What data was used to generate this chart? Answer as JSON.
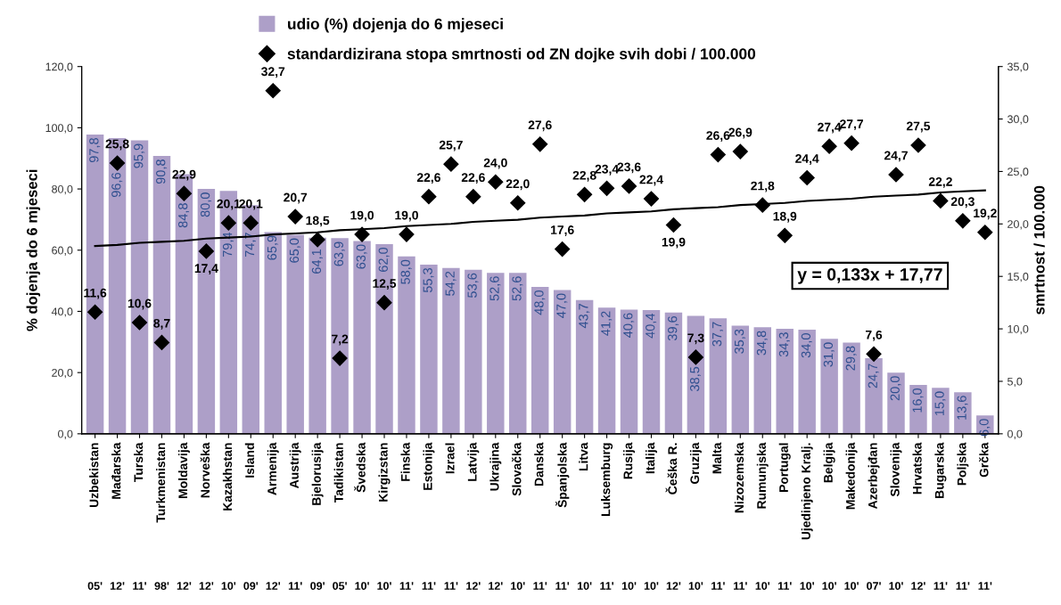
{
  "chart_data": {
    "type": "bar",
    "ylabel": "% dojenja do 6 mjeseci",
    "y2label": "smrtnost / 100.000",
    "categories": [
      "Uzbekistan",
      "Mađarska",
      "Turska",
      "Turkmenistan",
      "Moldavija",
      "Norveška",
      "Kazakhstan",
      "Island",
      "Armenija",
      "Austrija",
      "Bjelorusija",
      "Tadikistan",
      "Švedska",
      "Kirgizstan",
      "Finska",
      "Estonija",
      "Izrael",
      "Latvija",
      "Ukrajina",
      "Slovačka",
      "Danska",
      "Španjolska",
      "Litva",
      "Luksemburg",
      "Rusija",
      "Italija",
      "Češka R.",
      "Gruzija",
      "Malta",
      "Nizozemska",
      "Rumunjska",
      "Portugal",
      "Ujedinjeno Kralj.",
      "Belgija",
      "Makedonija",
      "Azerbejđan",
      "Slovenija",
      "Hrvatska",
      "Bugarska",
      "Poljska",
      "Grčka"
    ],
    "series": [
      {
        "name": "udio (%) dojenja do 6 mjeseci",
        "color": "#ad9fc8",
        "values": [
          97.8,
          96.6,
          95.9,
          90.8,
          84.8,
          80.0,
          79.4,
          74.7,
          65.9,
          65.0,
          64.1,
          63.9,
          63.0,
          62.0,
          58.0,
          55.3,
          54.2,
          53.6,
          52.6,
          52.6,
          48.0,
          47.0,
          43.7,
          41.2,
          40.6,
          40.4,
          39.6,
          38.5,
          37.7,
          35.3,
          34.8,
          34.3,
          34.0,
          31.0,
          29.8,
          24.7,
          20.0,
          16.0,
          15.0,
          13.6,
          6.0
        ],
        "value_labels": [
          "97,8",
          "96,6",
          "95,9",
          "90,8",
          "84,8",
          "80,0",
          "79,4",
          "74,7",
          "65,9",
          "65,0",
          "64,1",
          "63,9",
          "63,0",
          "62,0",
          "58,0",
          "55,3",
          "54,2",
          "53,6",
          "52,6",
          "52,6",
          "48,0",
          "47,0",
          "43,7",
          "41,2",
          "40,6",
          "40,4",
          "39,6",
          "38,5",
          "37,7",
          "35,3",
          "34,8",
          "34,3",
          "34,0",
          "31,0",
          "29,8",
          "24,7",
          "20,0",
          "16,0",
          "15,0",
          "13,6",
          "6,0"
        ]
      },
      {
        "type": "scatter",
        "axis": "y2",
        "marker": "diamond",
        "name": "standardizirana stopa smrtnosti od ZN dojke svih dobi / 100.000",
        "color": "#000000",
        "values": [
          11.6,
          25.8,
          10.6,
          8.7,
          22.9,
          17.4,
          20.1,
          20.1,
          32.7,
          20.7,
          18.5,
          7.2,
          19.0,
          12.5,
          19.0,
          22.6,
          25.7,
          22.6,
          24.0,
          22.0,
          27.6,
          17.6,
          22.8,
          23.4,
          23.6,
          22.4,
          19.9,
          7.3,
          26.6,
          26.9,
          21.8,
          18.9,
          24.4,
          27.4,
          27.7,
          7.6,
          24.7,
          27.5,
          22.2,
          20.3,
          19.2
        ],
        "value_labels": [
          "11,6",
          "25,8",
          "10,6",
          "8,7",
          "22,9",
          "17,4",
          "20,1",
          "20,1",
          "32,7",
          "20,7",
          "18,5",
          "7,2",
          "19,0",
          "12,5",
          "19,0",
          "22,6",
          "25,7",
          "22,6",
          "24,0",
          "22,0",
          "27,6",
          "17,6",
          "22,8",
          "23,4",
          "23,6",
          "22,4",
          "19,9",
          "7,3",
          "26,6",
          "26,9",
          "21,8",
          "18,9",
          "24,4",
          "27,4",
          "27,7",
          "7,6",
          "24,7",
          "27,5",
          "22,2",
          "20,3",
          "19,2"
        ]
      },
      {
        "type": "line",
        "axis": "y2",
        "color": "#000000",
        "line_style": "solid",
        "values": [
          17.9,
          18.0,
          18.2,
          18.3,
          18.4,
          18.6,
          18.7,
          18.8,
          19.0,
          19.1,
          19.2,
          19.4,
          19.5,
          19.6,
          19.8,
          19.9,
          20.0,
          20.2,
          20.3,
          20.4,
          20.6,
          20.7,
          20.8,
          21.0,
          21.1,
          21.2,
          21.4,
          21.5,
          21.6,
          21.8,
          21.9,
          22.0,
          22.2,
          22.3,
          22.4,
          22.6,
          22.7,
          22.8,
          23.0,
          23.1,
          23.2
        ]
      }
    ],
    "ylim": [
      0,
      120
    ],
    "yticks": [
      {
        "value": 0,
        "label": "0,0"
      },
      {
        "value": 20,
        "label": "20,0"
      },
      {
        "value": 40,
        "label": "40,0"
      },
      {
        "value": 60,
        "label": "60,0"
      },
      {
        "value": 80,
        "label": "80,0"
      },
      {
        "value": 100,
        "label": "100,0"
      },
      {
        "value": 120,
        "label": "120,0"
      }
    ],
    "y2lim": [
      0,
      35
    ],
    "y2ticks": [
      {
        "value": 0,
        "label": "0,0"
      },
      {
        "value": 5,
        "label": "5,0"
      },
      {
        "value": 10,
        "label": "10,0"
      },
      {
        "value": 15,
        "label": "15,0"
      },
      {
        "value": 20,
        "label": "20,0"
      },
      {
        "value": 25,
        "label": "25,0"
      },
      {
        "value": 30,
        "label": "30,0"
      },
      {
        "value": 35,
        "label": "35,0"
      }
    ],
    "grid": false,
    "legend": "top",
    "annotations": [
      "05'",
      "12'",
      "11'",
      "98'",
      "12'",
      "12'",
      "10'",
      "09'",
      "12'",
      "11'",
      "09'",
      "05'",
      "10'",
      "10'",
      "11'",
      "11'",
      "11'",
      "12'",
      "12'",
      "10'",
      "11'",
      "11'",
      "10'",
      "11'",
      "10'",
      "10'",
      "12'",
      "10'",
      "11'",
      "11'",
      "10'",
      "11'",
      "10'",
      "10'",
      "10'",
      "07'",
      "10'",
      "12'",
      "11'",
      "11'",
      "11'",
      "y = 0,133x + 17,77"
    ]
  }
}
